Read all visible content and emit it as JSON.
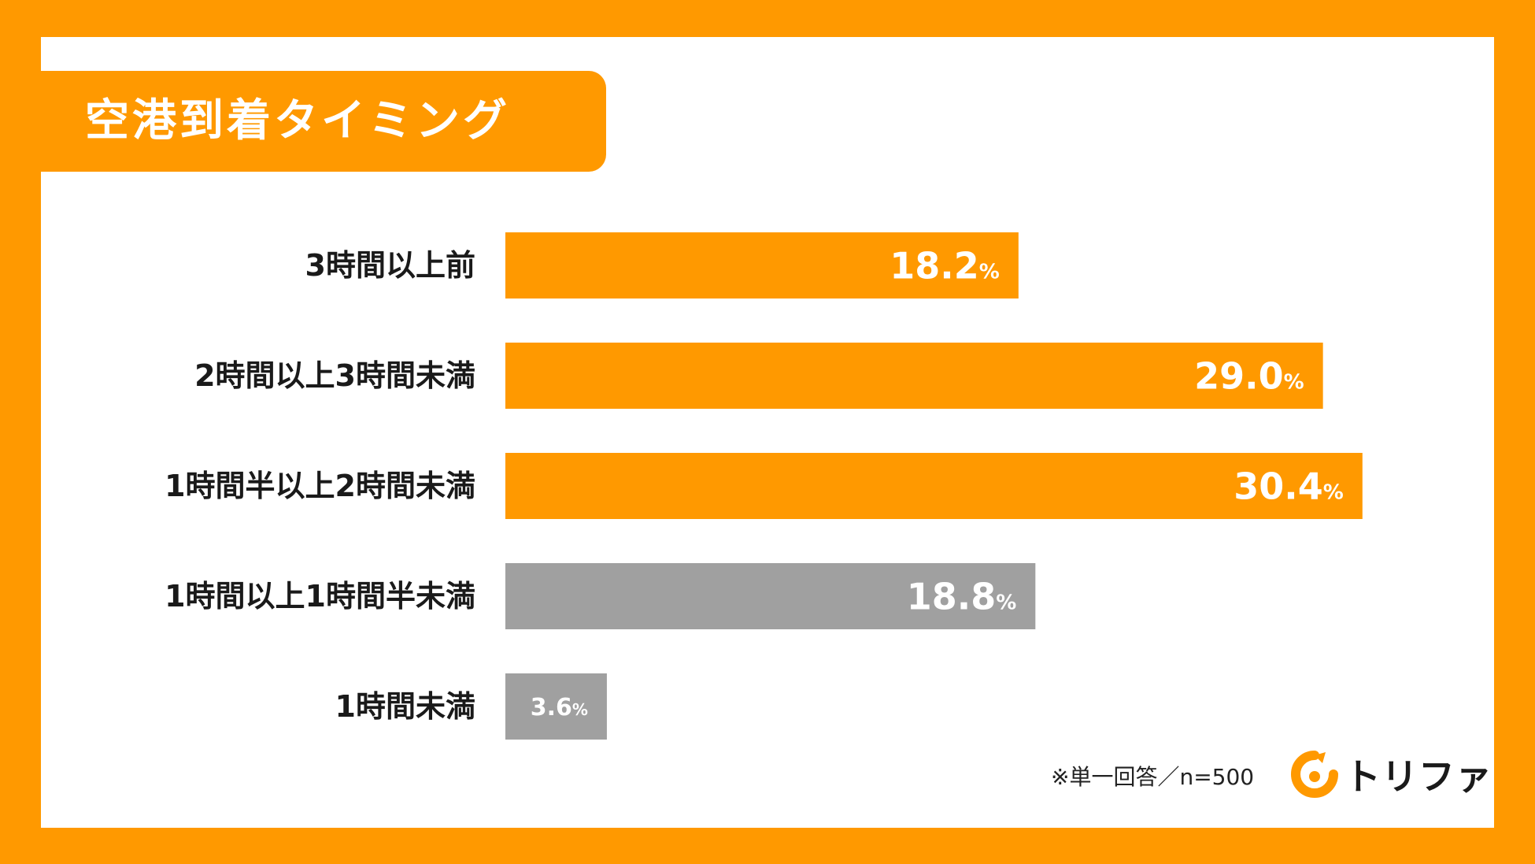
{
  "title": "空港到着タイミング",
  "footnote": "※単一回答／n=500",
  "logo": {
    "text": "トリファ",
    "icon": "trifa-logo-icon"
  },
  "colors": {
    "background": "#FF9900",
    "panel": "#FFFFFF",
    "highlight_bar": "#FF9900",
    "muted_bar": "#A0A0A0"
  },
  "chart_data": {
    "type": "bar",
    "orientation": "horizontal",
    "categories": [
      "3時間以上前",
      "2時間以上3時間未満",
      "1時間半以上2時間未満",
      "1時間以上1時間半未満",
      "1時間未満"
    ],
    "values": [
      18.2,
      29.0,
      30.4,
      18.8,
      3.6
    ],
    "value_labels": [
      "18.2",
      "29.0",
      "30.4",
      "18.8",
      "3.6"
    ],
    "unit": "%",
    "bar_colors": [
      "#FF9900",
      "#FF9900",
      "#FF9900",
      "#A0A0A0",
      "#A0A0A0"
    ],
    "xlim": [
      0,
      32.5
    ],
    "grid": false
  }
}
